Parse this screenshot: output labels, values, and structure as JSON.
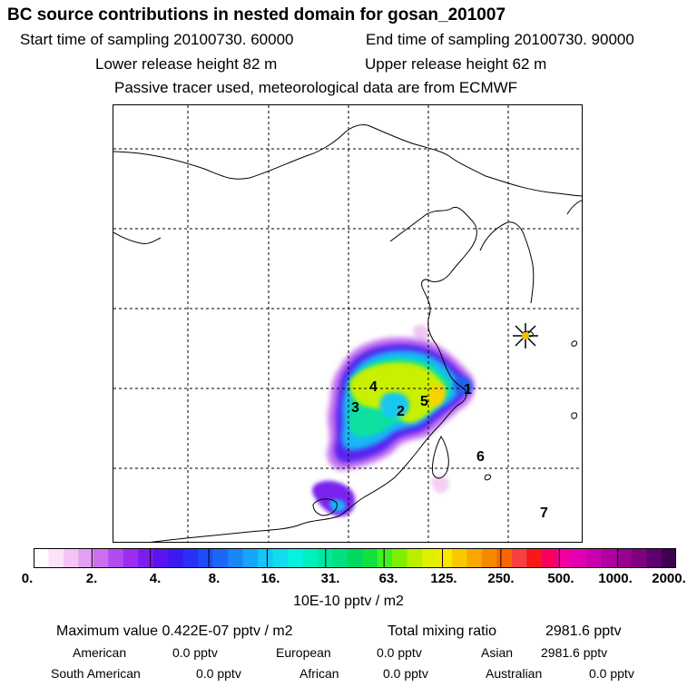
{
  "header": {
    "title": "BC  source contributions in nested domain for gosan_201007",
    "start_label": "Start time of sampling 20100730. 60000",
    "end_label": "End time of sampling 20100730. 90000",
    "lower_label": "Lower release height   82 m",
    "upper_label": "Upper release height   62 m",
    "tracer_note": "Passive tracer used, meteorological data are from ECMWF"
  },
  "map": {
    "region_numbers": [
      "1",
      "2",
      "3",
      "4",
      "5",
      "6",
      "7"
    ],
    "receptor_marker": "gosan-receptor-star"
  },
  "colorbar": {
    "labels": [
      "0.",
      "2.",
      "4.",
      "8.",
      "16.",
      "31.",
      "63.",
      "125.",
      "250.",
      "500.",
      "1000.",
      "2000."
    ],
    "colors": [
      "#ffffff",
      "#fbe4fb",
      "#f4c4f6",
      "#e39ff0",
      "#cc6ef0",
      "#b34af0",
      "#9a2df0",
      "#7d1cf0",
      "#5b13f0",
      "#3b1af2",
      "#2a30f6",
      "#1f4cf8",
      "#1a68f8",
      "#1a86f8",
      "#18a4f8",
      "#16c4f6",
      "#10dcec",
      "#08f0e0",
      "#00f0c0",
      "#00e8a0",
      "#00e080",
      "#00d860",
      "#10e040",
      "#40f020",
      "#80f000",
      "#b8f000",
      "#e0f000",
      "#f8e800",
      "#f8c800",
      "#f8a800",
      "#f88800",
      "#f86800",
      "#f84040",
      "#f81818",
      "#f80060",
      "#f000a0",
      "#e000b0",
      "#c800b0",
      "#b000a0",
      "#980090",
      "#800080",
      "#600070",
      "#400050"
    ],
    "units": "10E-10 pptv / m2"
  },
  "stats": {
    "maximum_label": "Maximum value  0.422E-07 pptv / m2",
    "total_label": "Total mixing ratio",
    "total_value": "2981.6 pptv",
    "american_label": "American",
    "american_value": "0.0 pptv",
    "european_label": "European",
    "european_value": "0.0 pptv",
    "asian_label": "Asian",
    "asian_value": "2981.6 pptv",
    "south_american_label": "South American",
    "south_american_value": "0.0 pptv",
    "african_label": "African",
    "african_value": "0.0 pptv",
    "australian_label": "Australian",
    "australian_value": "0.0 pptv"
  }
}
